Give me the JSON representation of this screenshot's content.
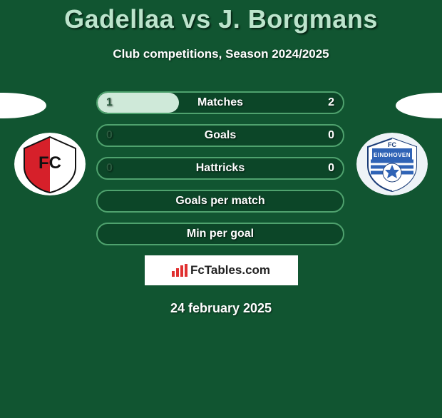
{
  "header": {
    "title": "Gadellaa vs J. Borgmans",
    "subtitle": "Club competitions, Season 2024/2025"
  },
  "bars": [
    {
      "label": "Matches",
      "left": "1",
      "right": "2",
      "fill_pct": 33
    },
    {
      "label": "Goals",
      "left": "0",
      "right": "0",
      "fill_pct": 0
    },
    {
      "label": "Hattricks",
      "left": "0",
      "right": "0",
      "fill_pct": 0
    },
    {
      "label": "Goals per match",
      "left": "",
      "right": "",
      "fill_pct": 0
    },
    {
      "label": "Min per goal",
      "left": "",
      "right": "",
      "fill_pct": 0
    }
  ],
  "watermark": {
    "text_a": "Fc",
    "text_b": "Tables",
    "text_c": ".com"
  },
  "date": "24 february 2025",
  "style": {
    "bg": "#115531",
    "bar_border": "#4fa26e",
    "bar_bg": "#0c4628",
    "fill": "#cfe9d9",
    "title_color": "#bce4cc",
    "text_color": "#ffffff"
  },
  "crest_left": {
    "name": "fc-utrecht",
    "colors": {
      "bg": "#ffffff",
      "red": "#d6202a",
      "black": "#111111"
    }
  },
  "crest_right": {
    "name": "fc-eindhoven",
    "colors": {
      "bg": "#eef3f7",
      "blue": "#2f63b6",
      "outline": "#1b3d78"
    }
  }
}
